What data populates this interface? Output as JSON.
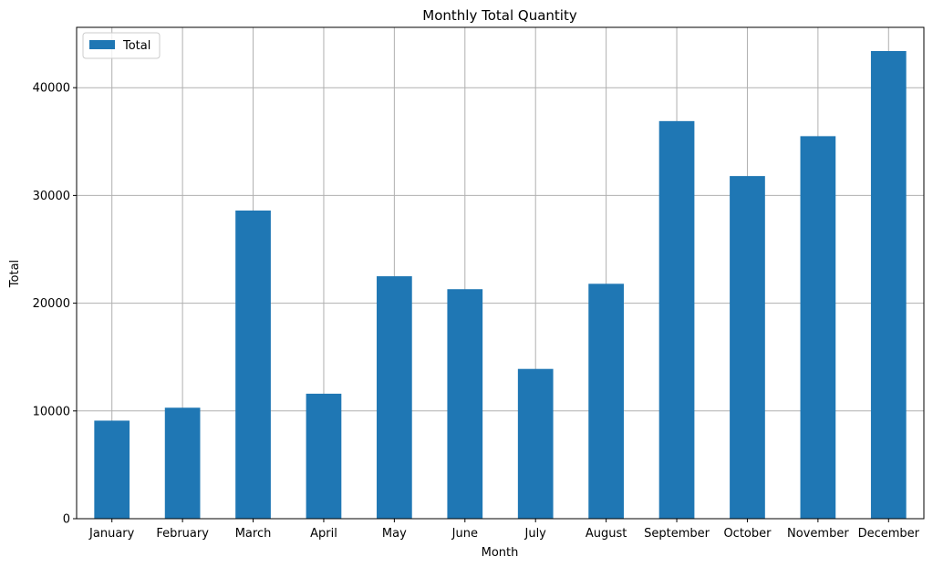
{
  "chart_data": {
    "type": "bar",
    "title": "Monthly Total Quantity",
    "xlabel": "Month",
    "ylabel": "Total",
    "categories": [
      "January",
      "February",
      "March",
      "April",
      "May",
      "June",
      "July",
      "August",
      "September",
      "October",
      "November",
      "December"
    ],
    "series": [
      {
        "name": "Total",
        "color": "#1f77b4",
        "values": [
          9100,
          10300,
          28600,
          11600,
          22500,
          21300,
          13900,
          21800,
          36900,
          31800,
          35500,
          43400
        ]
      }
    ],
    "ylim": [
      0,
      45600
    ],
    "yticks": [
      0,
      10000,
      20000,
      30000,
      40000
    ],
    "ytick_labels": [
      "0",
      "10000",
      "20000",
      "30000",
      "40000"
    ],
    "grid": true,
    "legend_position": "top-left"
  }
}
